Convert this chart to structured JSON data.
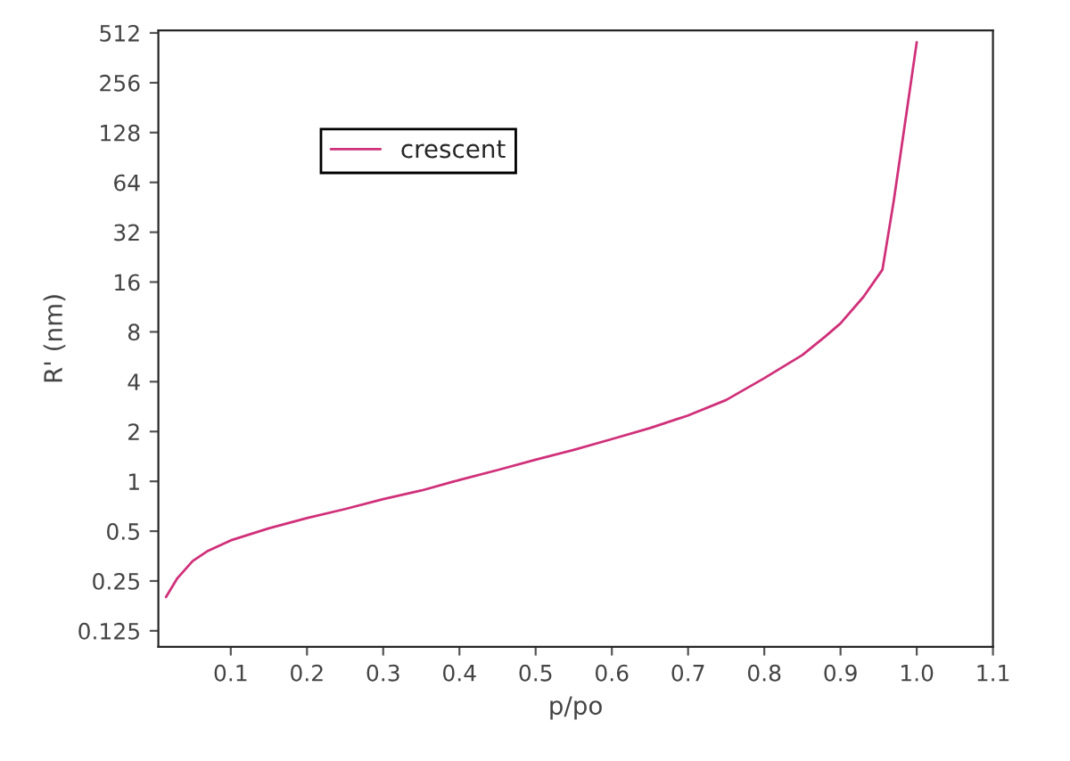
{
  "chart_data": {
    "type": "line",
    "xlabel": "p/po",
    "ylabel": "R' (nm)",
    "log": "y",
    "legend": "top left",
    "xlim": [
      0.005,
      1.1
    ],
    "xticks": [
      {
        "value": 0.1,
        "label": "0.1"
      },
      {
        "value": 0.2,
        "label": "0.2"
      },
      {
        "value": 0.3,
        "label": "0.3"
      },
      {
        "value": 0.4,
        "label": "0.4"
      },
      {
        "value": 0.5,
        "label": "0.5"
      },
      {
        "value": 0.6,
        "label": "0.6"
      },
      {
        "value": 0.7,
        "label": "0.7"
      },
      {
        "value": 0.8,
        "label": "0.8"
      },
      {
        "value": 0.9,
        "label": "0.9"
      },
      {
        "value": 1.0,
        "label": "1.0"
      },
      {
        "value": 1.1,
        "label": "1.1"
      }
    ],
    "ylim": [
      0.1,
      530
    ],
    "yticks": [
      0.125,
      0.25,
      0.5,
      1,
      2,
      4,
      8,
      16,
      32,
      64,
      128,
      256,
      512
    ],
    "x": [
      0.015,
      0.03,
      0.05,
      0.07,
      0.1,
      0.15,
      0.2,
      0.25,
      0.3,
      0.35,
      0.4,
      0.45,
      0.5,
      0.55,
      0.6,
      0.65,
      0.7,
      0.75,
      0.8,
      0.85,
      0.88,
      0.9,
      0.93,
      0.955,
      0.97,
      0.985,
      1.0
    ],
    "series": [
      {
        "name": "crescent",
        "color": "#d0307a",
        "values": [
          0.2,
          0.26,
          0.33,
          0.38,
          0.44,
          0.52,
          0.6,
          0.68,
          0.78,
          0.88,
          1.02,
          1.17,
          1.35,
          1.55,
          1.8,
          2.1,
          2.5,
          3.1,
          4.2,
          5.8,
          7.5,
          9,
          13,
          19,
          50,
          150,
          450
        ]
      }
    ]
  }
}
